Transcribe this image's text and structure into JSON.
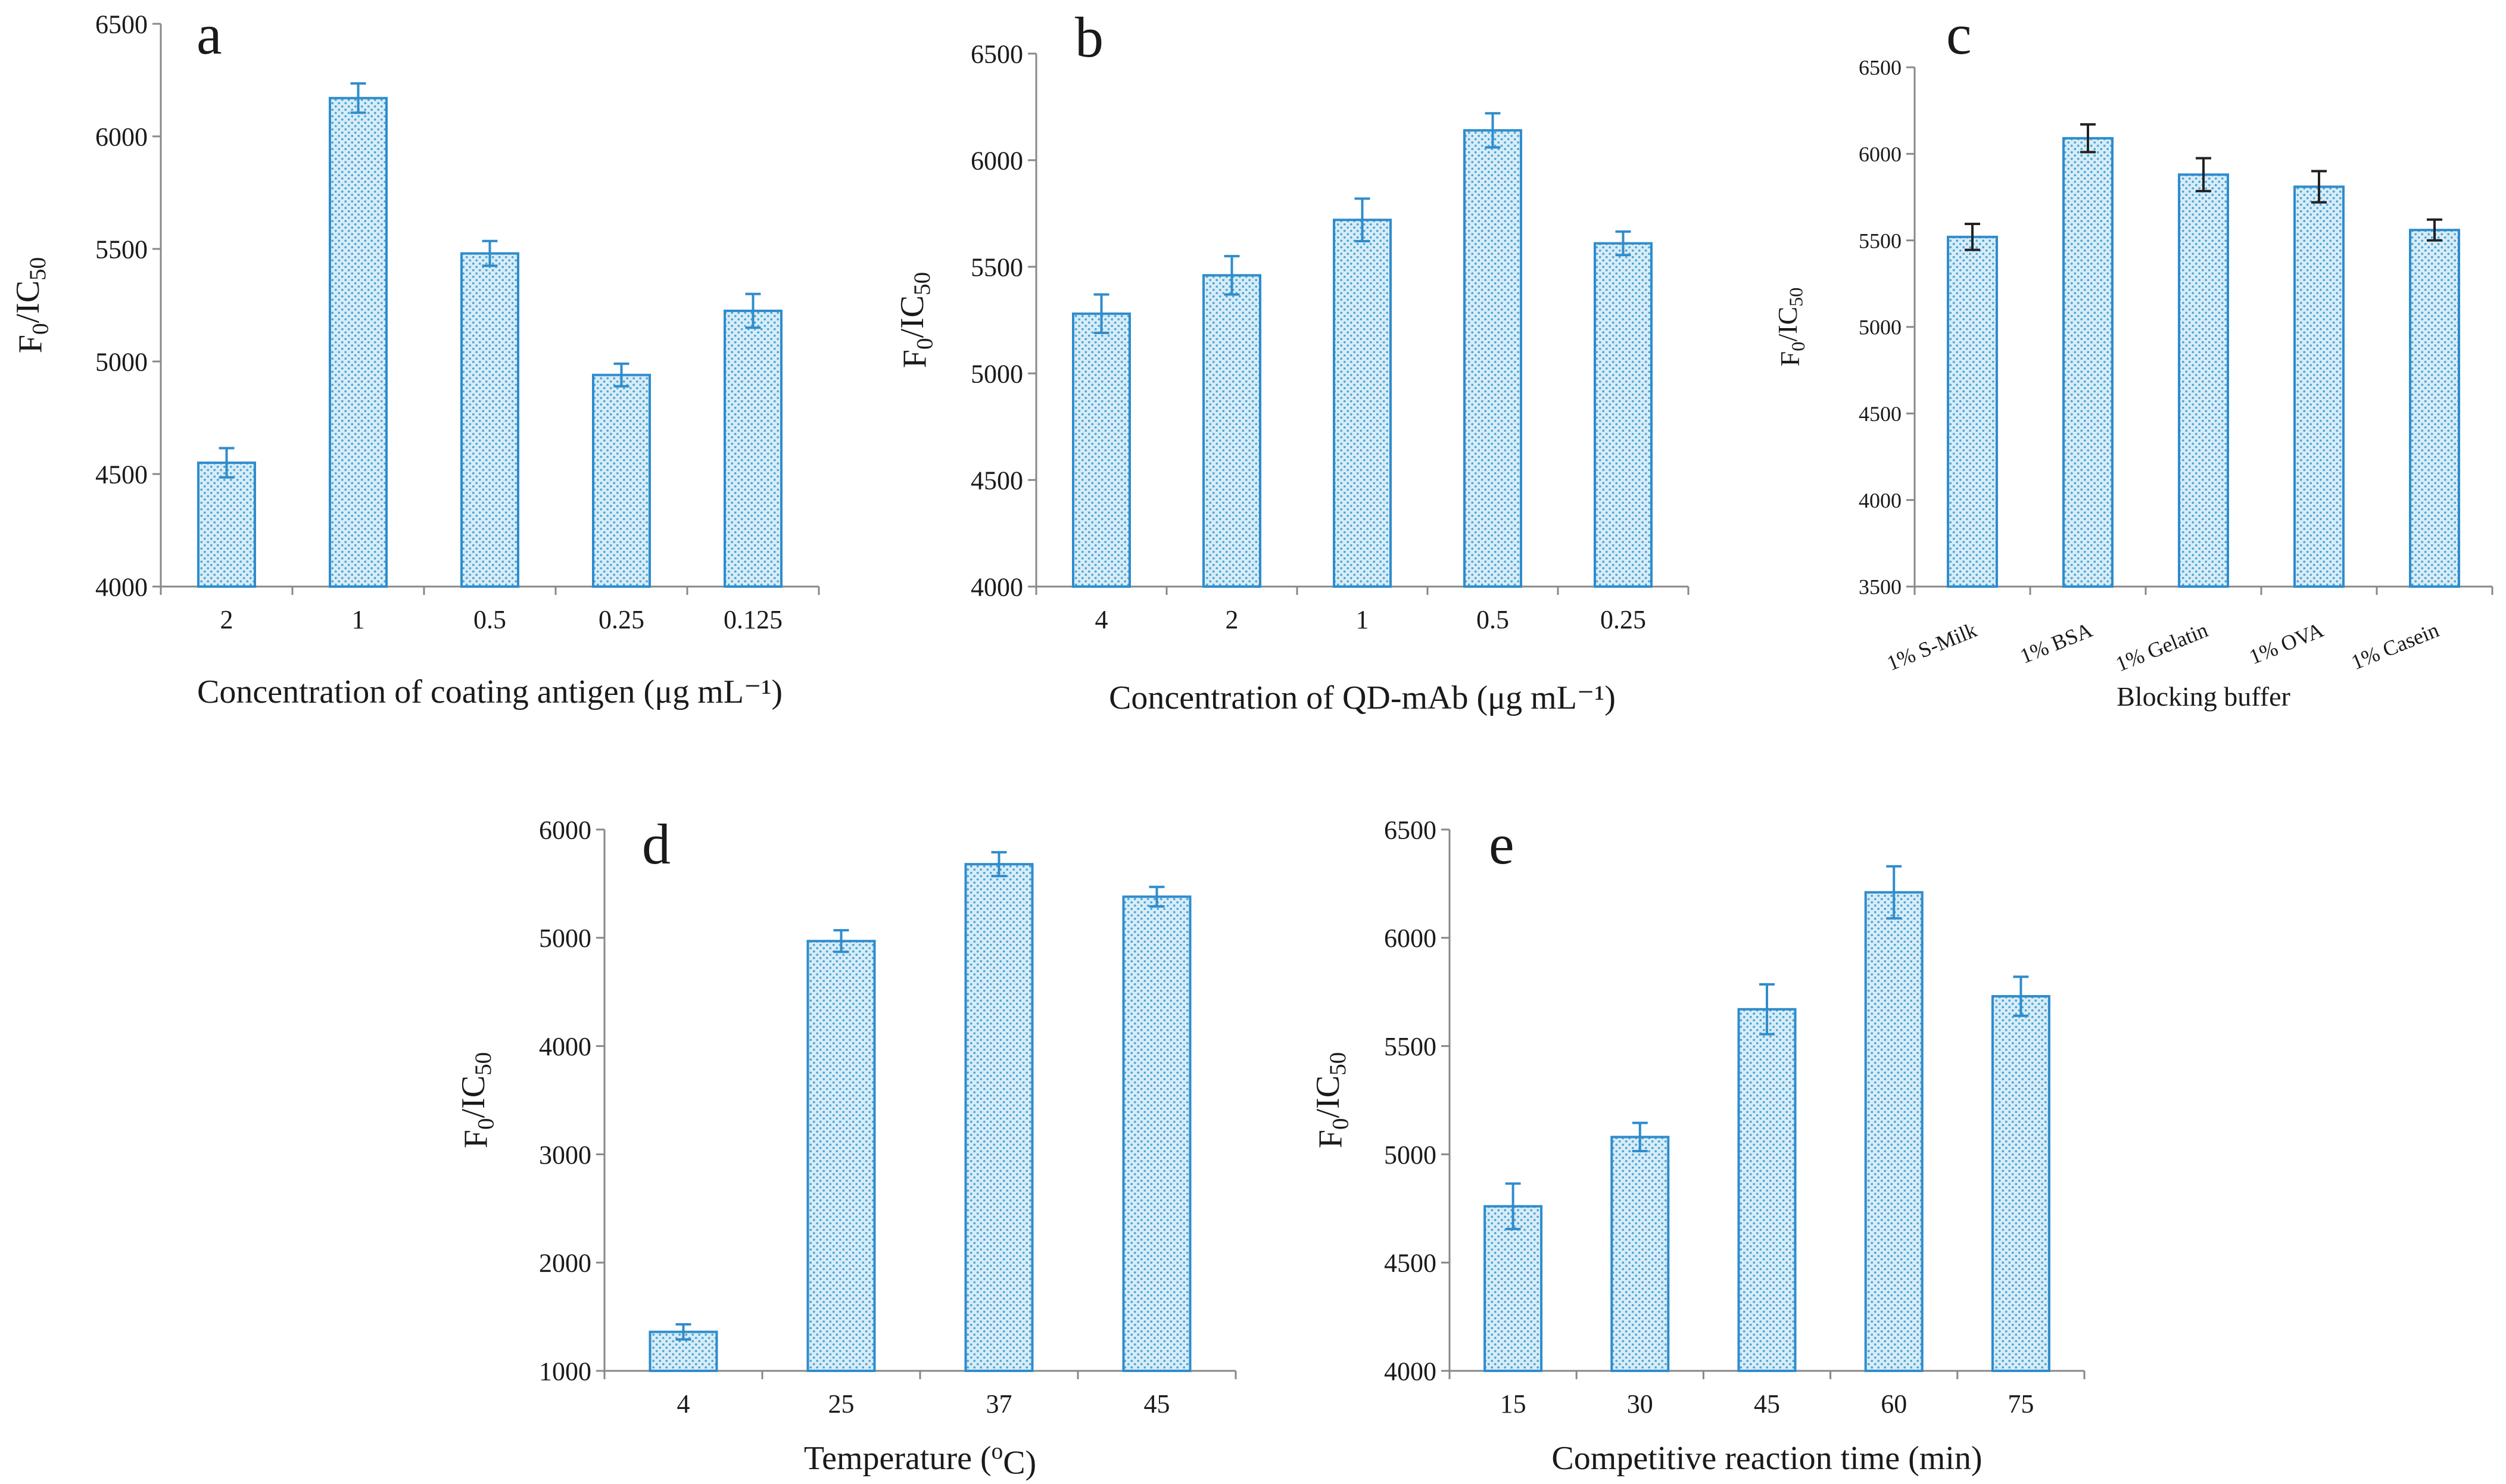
{
  "colors": {
    "bar_fill": "#d8ecf7",
    "bar_dot": "#4aa6d6",
    "bar_stroke": "#2f8ccc",
    "error_blue": "#2f8ccc",
    "error_black": "#222222",
    "axis": "#888888"
  },
  "chart_data": [
    {
      "panel": "a",
      "type": "bar",
      "categories": [
        "2",
        "1",
        "0.5",
        "0.25",
        "0.125"
      ],
      "values": [
        4550,
        6170,
        5480,
        4940,
        5225
      ],
      "errors": [
        65,
        65,
        55,
        50,
        75
      ],
      "ylim": [
        4000,
        6500
      ],
      "yticks": [
        4000,
        4500,
        5000,
        5500,
        6000,
        6500
      ],
      "ylabel": "F0/IC50",
      "xlabel": "Concentration of coating antigen (μg mL⁻¹)",
      "error_color": "blue"
    },
    {
      "panel": "b",
      "type": "bar",
      "categories": [
        "4",
        "2",
        "1",
        "0.5",
        "0.25"
      ],
      "values": [
        5280,
        5460,
        5720,
        6140,
        5610
      ],
      "errors": [
        90,
        90,
        100,
        80,
        55
      ],
      "ylim": [
        4000,
        6500
      ],
      "yticks": [
        4000,
        4500,
        5000,
        5500,
        6000,
        6500
      ],
      "ylabel": "F0/IC50",
      "xlabel": "Concentration of QD-mAb (μg mL⁻¹)",
      "error_color": "blue"
    },
    {
      "panel": "c",
      "type": "bar",
      "categories": [
        "1% S-Milk",
        "1% BSA",
        "1% Gelatin",
        "1% OVA",
        "1% Casein"
      ],
      "values": [
        5520,
        6090,
        5880,
        5810,
        5560
      ],
      "errors": [
        75,
        80,
        95,
        90,
        60
      ],
      "ylim": [
        3500,
        6500
      ],
      "yticks": [
        3500,
        4000,
        4500,
        5000,
        5500,
        6000,
        6500
      ],
      "ylabel": "F0/IC50",
      "xlabel": "Blocking buffer",
      "error_color": "black",
      "rotate_ticks": true
    },
    {
      "panel": "d",
      "type": "bar",
      "categories": [
        "4",
        "25",
        "37",
        "45"
      ],
      "values": [
        1360,
        4970,
        5680,
        5380
      ],
      "errors": [
        70,
        100,
        110,
        90
      ],
      "ylim": [
        1000,
        6000
      ],
      "yticks": [
        1000,
        2000,
        3000,
        4000,
        5000,
        6000
      ],
      "ylabel": "F0/IC50",
      "xlabel": "Temperature (oC)",
      "error_color": "blue"
    },
    {
      "panel": "e",
      "type": "bar",
      "categories": [
        "15",
        "30",
        "45",
        "60",
        "75"
      ],
      "values": [
        4760,
        5080,
        5670,
        6210,
        5730
      ],
      "errors": [
        105,
        65,
        115,
        120,
        90
      ],
      "ylim": [
        4000,
        6500
      ],
      "yticks": [
        4000,
        4500,
        5000,
        5500,
        6000,
        6500
      ],
      "ylabel": "F0/IC50",
      "xlabel": "Competitive reaction time (min)",
      "error_color": "blue"
    }
  ]
}
